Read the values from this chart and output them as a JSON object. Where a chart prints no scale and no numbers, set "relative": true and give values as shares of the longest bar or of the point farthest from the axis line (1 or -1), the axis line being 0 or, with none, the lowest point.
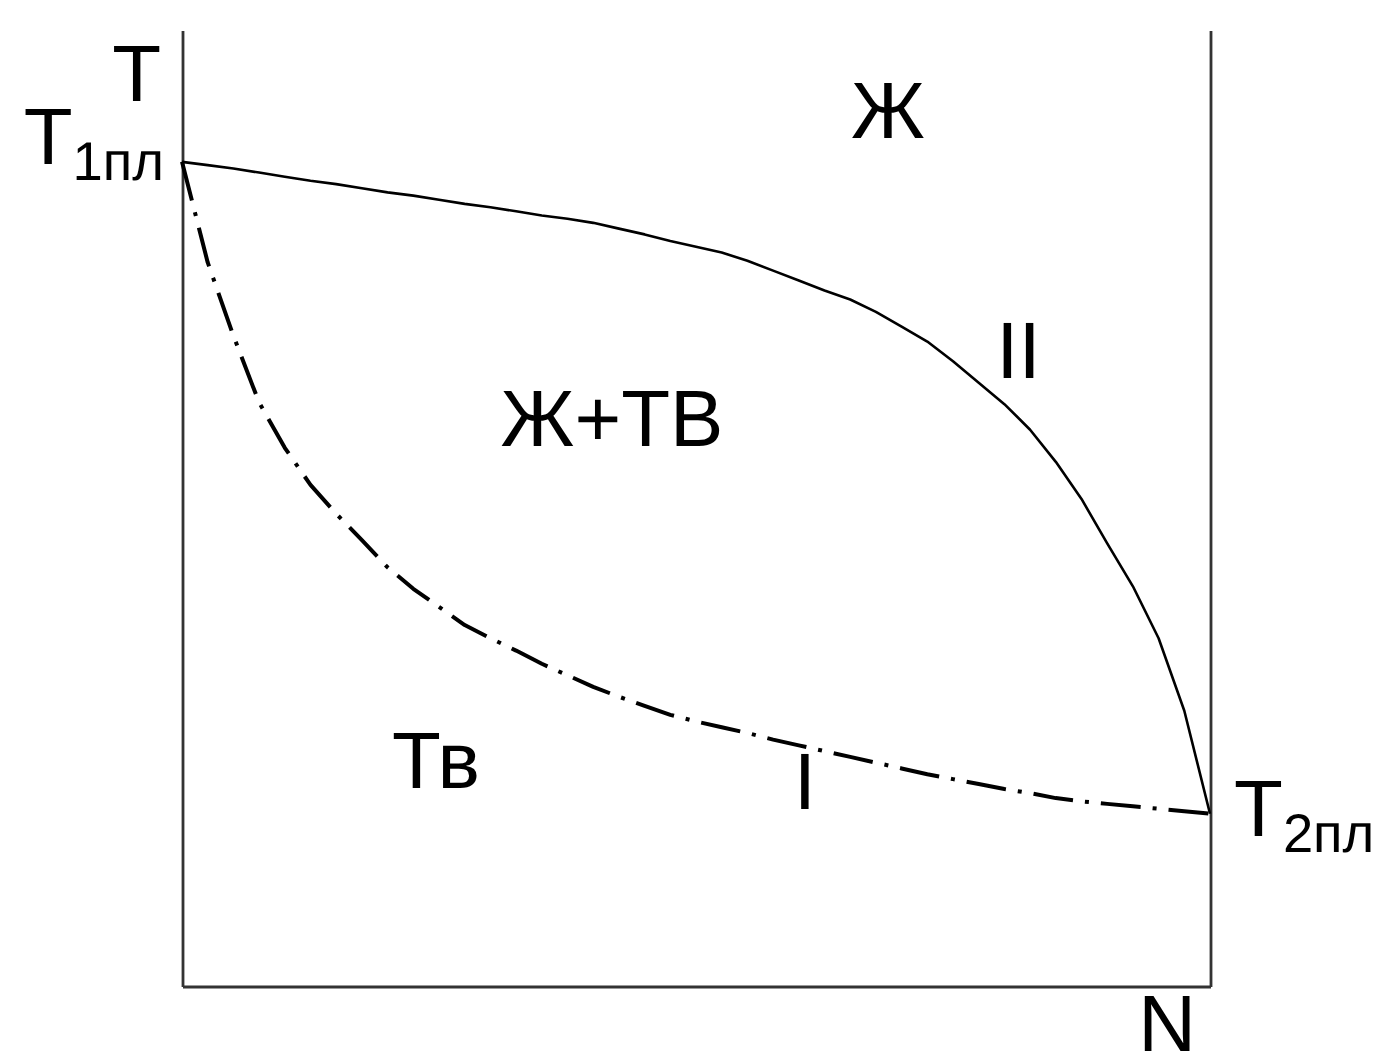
{
  "chart_data": {
    "type": "line",
    "relative": true,
    "xlabel": "N",
    "ylabel": "T",
    "categories": [
      null,
      null,
      null,
      null,
      null,
      null,
      null,
      null,
      null,
      null,
      null,
      null,
      null,
      null,
      null,
      null,
      null,
      null,
      null,
      null,
      null,
      null,
      null,
      null,
      null,
      null,
      null,
      null,
      null,
      null,
      null,
      null,
      null,
      null,
      null,
      null,
      null,
      null,
      null,
      null,
      null
    ],
    "series": [
      {
        "name": "I",
        "color": "#000000",
        "line_style": "dashed",
        "values": [
          1.0,
          0.878,
          0.789,
          0.708,
          0.653,
          0.608,
          0.573,
          0.541,
          0.508,
          0.482,
          0.46,
          0.438,
          0.422,
          0.407,
          0.391,
          0.377,
          0.363,
          0.351,
          0.34,
          0.329,
          0.321,
          0.314,
          0.307,
          0.299,
          0.292,
          0.285,
          0.278,
          0.271,
          0.264,
          0.257,
          0.251,
          0.245,
          0.239,
          0.234,
          0.228,
          0.224,
          0.221,
          0.218,
          0.215,
          0.212,
          0.209
        ]
      },
      {
        "name": "II",
        "color": "#000000",
        "line_style": "solid",
        "values": [
          1.0,
          0.996,
          0.992,
          0.987,
          0.982,
          0.977,
          0.973,
          0.968,
          0.963,
          0.959,
          0.954,
          0.949,
          0.945,
          0.94,
          0.935,
          0.931,
          0.926,
          0.919,
          0.912,
          0.904,
          0.897,
          0.89,
          0.88,
          0.868,
          0.856,
          0.844,
          0.833,
          0.818,
          0.8,
          0.782,
          0.758,
          0.732,
          0.706,
          0.675,
          0.636,
          0.591,
          0.537,
          0.485,
          0.422,
          0.334,
          0.209
        ]
      }
    ],
    "annotations": [
      "T$_{1пл}$",
      "T$_{2пл}$",
      "Ж",
      "Ж+ТВ",
      "Тв"
    ]
  }
}
